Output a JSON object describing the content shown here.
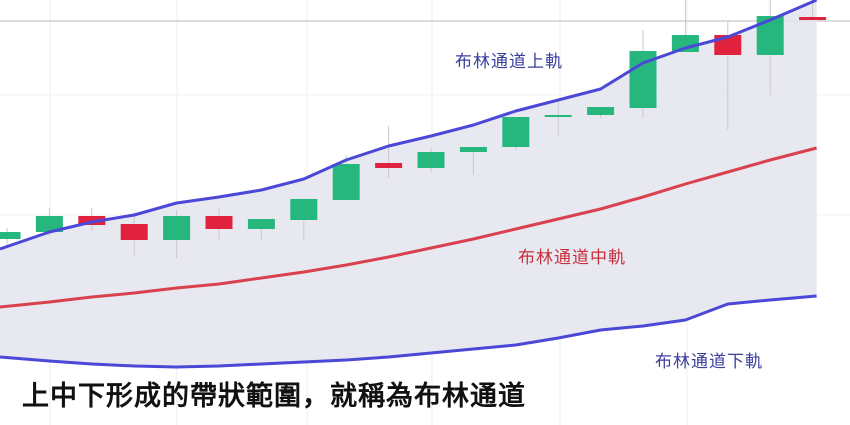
{
  "chart_data": {
    "type": "candlestick",
    "title": "",
    "xlabel": "",
    "ylabel": "",
    "ylim": [
      0,
      42.5
    ],
    "grid": true,
    "candles": [
      {
        "o": 18.6,
        "h": 19.7,
        "l": 17.7,
        "c": 19.3
      },
      {
        "o": 19.3,
        "h": 21.7,
        "l": 18.9,
        "c": 20.9
      },
      {
        "o": 20.9,
        "h": 21.7,
        "l": 19.4,
        "c": 20.0
      },
      {
        "o": 20.1,
        "h": 21.3,
        "l": 17.0,
        "c": 18.5
      },
      {
        "o": 18.5,
        "h": 21.5,
        "l": 16.7,
        "c": 20.9
      },
      {
        "o": 20.9,
        "h": 21.8,
        "l": 18.5,
        "c": 19.6
      },
      {
        "o": 19.6,
        "h": 20.6,
        "l": 18.5,
        "c": 20.6
      },
      {
        "o": 20.5,
        "h": 22.6,
        "l": 18.5,
        "c": 22.6
      },
      {
        "o": 22.5,
        "h": 27.0,
        "l": 22.5,
        "c": 26.1
      },
      {
        "o": 26.2,
        "h": 29.9,
        "l": 24.7,
        "c": 25.7
      },
      {
        "o": 25.7,
        "h": 27.7,
        "l": 25.3,
        "c": 27.3
      },
      {
        "o": 27.3,
        "h": 27.8,
        "l": 25.0,
        "c": 27.8
      },
      {
        "o": 27.8,
        "h": 30.8,
        "l": 27.5,
        "c": 30.8
      },
      {
        "o": 30.8,
        "h": 32.5,
        "l": 29.0,
        "c": 31.0
      },
      {
        "o": 31.0,
        "h": 31.8,
        "l": 30.7,
        "c": 31.8
      },
      {
        "o": 31.7,
        "h": 39.5,
        "l": 30.7,
        "c": 37.4
      },
      {
        "o": 37.3,
        "h": 42.5,
        "l": 37.3,
        "c": 39.0
      },
      {
        "o": 39.0,
        "h": 40.3,
        "l": 29.5,
        "c": 37.0
      },
      {
        "o": 37.0,
        "h": 42.5,
        "l": 33.0,
        "c": 40.9
      },
      {
        "o": 40.8,
        "h": 42.5,
        "l": 40.5,
        "c": 40.5
      }
    ],
    "series": [
      {
        "name": "布林通道上軌",
        "color": "#4b48d8",
        "values": [
          17.6,
          19.3,
          20.3,
          21.0,
          22.2,
          22.8,
          23.5,
          24.6,
          26.5,
          27.9,
          28.9,
          30.0,
          31.4,
          32.5,
          33.6,
          36.2,
          37.7,
          38.8,
          40.5,
          42.5
        ]
      },
      {
        "name": "布林通道中軌",
        "color": "#d9414e",
        "values": [
          11.8,
          12.3,
          12.8,
          13.2,
          13.7,
          14.1,
          14.7,
          15.3,
          16.0,
          16.8,
          17.7,
          18.6,
          19.6,
          20.6,
          21.6,
          22.8,
          24.1,
          25.3,
          26.5,
          27.7
        ]
      },
      {
        "name": "布林通道下軌",
        "color": "#4b48d8",
        "values": [
          6.8,
          6.4,
          6.1,
          5.9,
          5.8,
          5.9,
          6.1,
          6.3,
          6.5,
          6.8,
          7.2,
          7.6,
          8.0,
          8.7,
          9.5,
          9.9,
          10.5,
          12.1,
          12.5,
          12.9
        ]
      }
    ],
    "colors": {
      "up": "#26b77f",
      "down": "#e0223f",
      "band_fill": "#e4e4ee"
    }
  },
  "labels": {
    "upper": "布林通道上軌",
    "middle": "布林通道中軌",
    "lower": "布林通道下軌"
  },
  "caption": "上中下形成的帶狀範圍，就稱為布林通道"
}
